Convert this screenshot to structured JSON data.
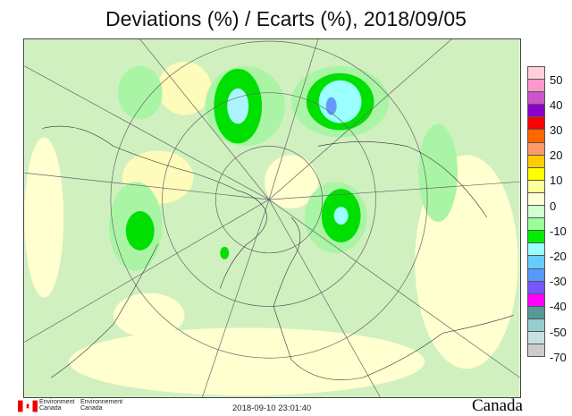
{
  "title": "Deviations (%) / Ecarts (%), 2018/09/05",
  "legend": {
    "colors": [
      "#ffd0d8",
      "#ff99cc",
      "#cc55cc",
      "#8800cc",
      "#ff0000",
      "#ff6600",
      "#ff9966",
      "#ffcc00",
      "#ffff00",
      "#ffff99",
      "#ffffd8",
      "#d0ffd0",
      "#99ff99",
      "#00ee00",
      "#99ffff",
      "#66ccff",
      "#5599ff",
      "#7755ff",
      "#ff00ff",
      "#559999",
      "#99cccc",
      "#c8e0e0",
      "#cccccc"
    ],
    "labels": [
      "50",
      "40",
      "30",
      "20",
      "10",
      "0",
      "-10",
      "-20",
      "-30",
      "-40",
      "-50",
      "-70"
    ]
  },
  "map": {
    "background": "#d0f0c0"
  },
  "footer": {
    "dept_en_1": "Environment",
    "dept_en_2": "Canada",
    "dept_fr_1": "Environnement",
    "dept_fr_2": "Canada",
    "timestamp": "2018-09-10 23:01:40",
    "wordmark": "Canada"
  }
}
